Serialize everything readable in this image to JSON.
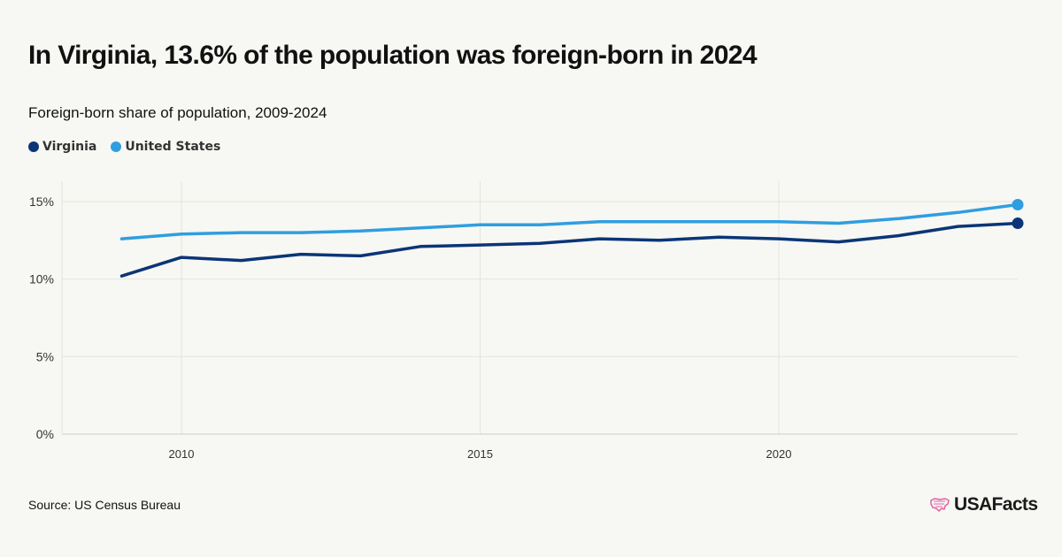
{
  "title": "In Virginia, 13.6% of the population was foreign-born in 2024",
  "subtitle": "Foreign-born share of population, 2009-2024",
  "legend": [
    {
      "label": "Virginia",
      "color": "#0b3576"
    },
    {
      "label": "United States",
      "color": "#2f9ee0"
    }
  ],
  "source": "Source: US Census Bureau",
  "brand": {
    "name": "USAFacts",
    "icon": "us-map-outline-icon",
    "color": "#e35fa0"
  },
  "chart_data": {
    "type": "line",
    "title": "",
    "xlabel": "",
    "ylabel": "",
    "xlim": [
      2008,
      2024
    ],
    "ylim": [
      0,
      15
    ],
    "x_ticks": [
      2010,
      2015,
      2020
    ],
    "x_tick_labels": [
      "2010",
      "2015",
      "2020"
    ],
    "y_ticks": [
      0,
      5,
      10,
      15
    ],
    "y_tick_labels": [
      "0%",
      "5%",
      "10%",
      "15%"
    ],
    "grid": true,
    "legend_position": "top-left",
    "x": [
      2009,
      2010,
      2011,
      2012,
      2013,
      2014,
      2015,
      2016,
      2017,
      2018,
      2019,
      2020,
      2021,
      2022,
      2023,
      2024
    ],
    "series": [
      {
        "name": "Virginia",
        "color": "#0b3576",
        "values": [
          10.2,
          11.4,
          11.2,
          11.6,
          11.5,
          12.1,
          12.2,
          12.3,
          12.6,
          12.5,
          12.7,
          12.6,
          12.4,
          12.8,
          13.4,
          13.6
        ]
      },
      {
        "name": "United States",
        "color": "#2f9ee0",
        "values": [
          12.6,
          12.9,
          13.0,
          13.0,
          13.1,
          13.3,
          13.5,
          13.5,
          13.7,
          13.7,
          13.7,
          13.7,
          13.6,
          13.9,
          14.3,
          14.8
        ]
      }
    ]
  }
}
